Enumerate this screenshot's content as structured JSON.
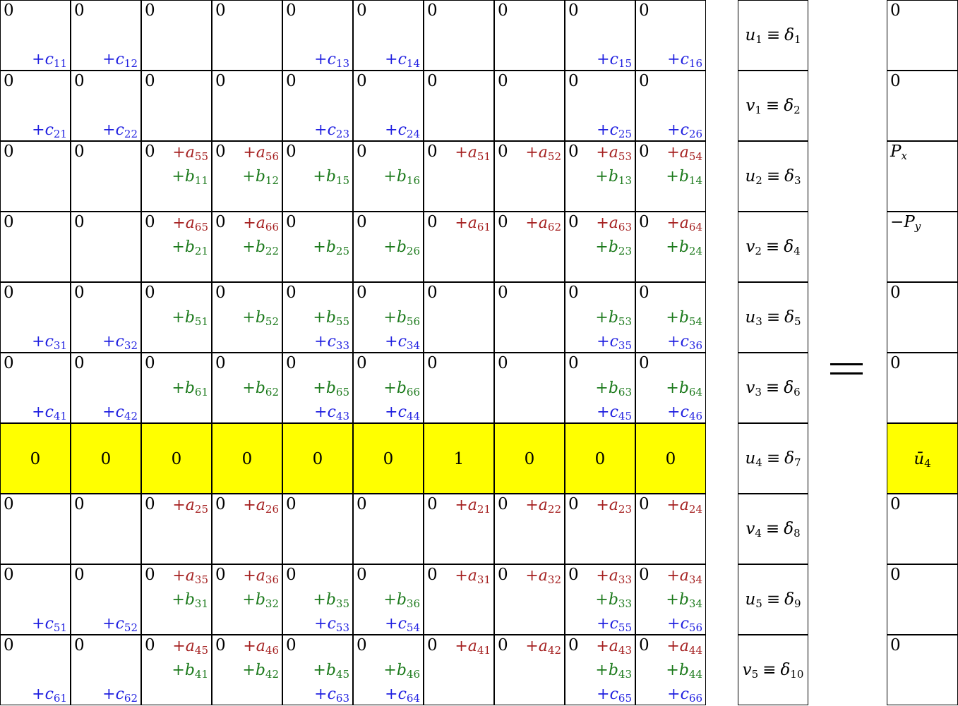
{
  "colors": {
    "a_terms": "#a52020",
    "b_terms": "#1c7a1c",
    "c_terms": "#1f1fe0",
    "highlight": "#ffff00"
  },
  "matrix": {
    "rows": [
      {
        "highlight": false,
        "cells": [
          {
            "z": "0",
            "c": "11"
          },
          {
            "z": "0",
            "c": "12"
          },
          {
            "z": "0"
          },
          {
            "z": "0"
          },
          {
            "z": "0",
            "c": "13"
          },
          {
            "z": "0",
            "c": "14"
          },
          {
            "z": "0"
          },
          {
            "z": "0"
          },
          {
            "z": "0",
            "c": "15"
          },
          {
            "z": "0",
            "c": "16"
          }
        ]
      },
      {
        "highlight": false,
        "cells": [
          {
            "z": "0",
            "c": "21"
          },
          {
            "z": "0",
            "c": "22"
          },
          {
            "z": "0"
          },
          {
            "z": "0"
          },
          {
            "z": "0",
            "c": "23"
          },
          {
            "z": "0",
            "c": "24"
          },
          {
            "z": "0"
          },
          {
            "z": "0"
          },
          {
            "z": "0",
            "c": "25"
          },
          {
            "z": "0",
            "c": "26"
          }
        ]
      },
      {
        "highlight": false,
        "cells": [
          {
            "z": "0"
          },
          {
            "z": "0"
          },
          {
            "z": "0",
            "a": "55",
            "b": "11"
          },
          {
            "z": "0",
            "a": "56",
            "b": "12"
          },
          {
            "z": "0",
            "b": "15"
          },
          {
            "z": "0",
            "b": "16"
          },
          {
            "z": "0",
            "a": "51"
          },
          {
            "z": "0",
            "a": "52"
          },
          {
            "z": "0",
            "a": "53",
            "b": "13"
          },
          {
            "z": "0",
            "a": "54",
            "b": "14"
          }
        ]
      },
      {
        "highlight": false,
        "cells": [
          {
            "z": "0"
          },
          {
            "z": "0"
          },
          {
            "z": "0",
            "a": "65",
            "b": "21"
          },
          {
            "z": "0",
            "a": "66",
            "b": "22"
          },
          {
            "z": "0",
            "b": "25"
          },
          {
            "z": "0",
            "b": "26"
          },
          {
            "z": "0",
            "a": "61"
          },
          {
            "z": "0",
            "a": "62"
          },
          {
            "z": "0",
            "a": "63",
            "b": "23"
          },
          {
            "z": "0",
            "a": "64",
            "b": "24"
          }
        ]
      },
      {
        "highlight": false,
        "cells": [
          {
            "z": "0",
            "c": "31"
          },
          {
            "z": "0",
            "c": "32"
          },
          {
            "z": "0",
            "b": "51"
          },
          {
            "z": "0",
            "b": "52"
          },
          {
            "z": "0",
            "b": "55",
            "c": "33"
          },
          {
            "z": "0",
            "b": "56",
            "c": "34"
          },
          {
            "z": "0"
          },
          {
            "z": "0"
          },
          {
            "z": "0",
            "b": "53",
            "c": "35"
          },
          {
            "z": "0",
            "b": "54",
            "c": "36"
          }
        ]
      },
      {
        "highlight": false,
        "cells": [
          {
            "z": "0",
            "c": "41"
          },
          {
            "z": "0",
            "c": "42"
          },
          {
            "z": "0",
            "b": "61"
          },
          {
            "z": "0",
            "b": "62"
          },
          {
            "z": "0",
            "b": "65",
            "c": "43"
          },
          {
            "z": "0",
            "b": "66",
            "c": "44"
          },
          {
            "z": "0"
          },
          {
            "z": "0"
          },
          {
            "z": "0",
            "b": "63",
            "c": "45"
          },
          {
            "z": "0",
            "b": "64",
            "c": "46"
          }
        ]
      },
      {
        "highlight": true,
        "cells": [
          {
            "v": "0"
          },
          {
            "v": "0"
          },
          {
            "v": "0"
          },
          {
            "v": "0"
          },
          {
            "v": "0"
          },
          {
            "v": "0"
          },
          {
            "v": "1"
          },
          {
            "v": "0"
          },
          {
            "v": "0"
          },
          {
            "v": "0"
          }
        ]
      },
      {
        "highlight": false,
        "cells": [
          {
            "z": "0"
          },
          {
            "z": "0"
          },
          {
            "z": "0",
            "a": "25"
          },
          {
            "z": "0",
            "a": "26"
          },
          {
            "z": "0"
          },
          {
            "z": "0"
          },
          {
            "z": "0",
            "a": "21"
          },
          {
            "z": "0",
            "a": "22"
          },
          {
            "z": "0",
            "a": "23"
          },
          {
            "z": "0",
            "a": "24"
          }
        ]
      },
      {
        "highlight": false,
        "cells": [
          {
            "z": "0",
            "c": "51"
          },
          {
            "z": "0",
            "c": "52"
          },
          {
            "z": "0",
            "a": "35",
            "b": "31"
          },
          {
            "z": "0",
            "a": "36",
            "b": "32"
          },
          {
            "z": "0",
            "b": "35",
            "c": "53"
          },
          {
            "z": "0",
            "b": "36",
            "c": "54"
          },
          {
            "z": "0",
            "a": "31"
          },
          {
            "z": "0",
            "a": "32"
          },
          {
            "z": "0",
            "a": "33",
            "b": "33",
            "c": "55"
          },
          {
            "z": "0",
            "a": "34",
            "b": "34",
            "c": "56"
          }
        ]
      },
      {
        "highlight": false,
        "cells": [
          {
            "z": "0",
            "c": "61"
          },
          {
            "z": "0",
            "c": "62"
          },
          {
            "z": "0",
            "a": "45",
            "b": "41"
          },
          {
            "z": "0",
            "a": "46",
            "b": "42"
          },
          {
            "z": "0",
            "b": "45",
            "c": "63"
          },
          {
            "z": "0",
            "b": "46",
            "c": "64"
          },
          {
            "z": "0",
            "a": "41"
          },
          {
            "z": "0",
            "a": "42"
          },
          {
            "z": "0",
            "a": "43",
            "b": "43",
            "c": "65"
          },
          {
            "z": "0",
            "a": "44",
            "b": "44",
            "c": "66"
          }
        ]
      }
    ]
  },
  "unknowns": [
    {
      "var": "u",
      "vsub": "1",
      "delta": "δ",
      "dsub": "1"
    },
    {
      "var": "v",
      "vsub": "1",
      "delta": "δ",
      "dsub": "2"
    },
    {
      "var": "u",
      "vsub": "2",
      "delta": "δ",
      "dsub": "3"
    },
    {
      "var": "v",
      "vsub": "2",
      "delta": "δ",
      "dsub": "4"
    },
    {
      "var": "u",
      "vsub": "3",
      "delta": "δ",
      "dsub": "5"
    },
    {
      "var": "v",
      "vsub": "3",
      "delta": "δ",
      "dsub": "6"
    },
    {
      "var": "u",
      "vsub": "4",
      "delta": "δ",
      "dsub": "7"
    },
    {
      "var": "v",
      "vsub": "4",
      "delta": "δ",
      "dsub": "8"
    },
    {
      "var": "u",
      "vsub": "5",
      "delta": "δ",
      "dsub": "9"
    },
    {
      "var": "v",
      "vsub": "5",
      "delta": "δ",
      "dsub": "10"
    }
  ],
  "equiv_symbol": "≡",
  "equals_symbol": "=",
  "rhs": [
    {
      "text": "0"
    },
    {
      "text": "0"
    },
    {
      "text": "P",
      "sub": "x"
    },
    {
      "text": "−P",
      "sub": "y"
    },
    {
      "text": "0"
    },
    {
      "text": "0"
    },
    {
      "text": "ū",
      "sub": "4",
      "highlight": true
    },
    {
      "text": "0"
    },
    {
      "text": "0"
    },
    {
      "text": "0"
    }
  ]
}
